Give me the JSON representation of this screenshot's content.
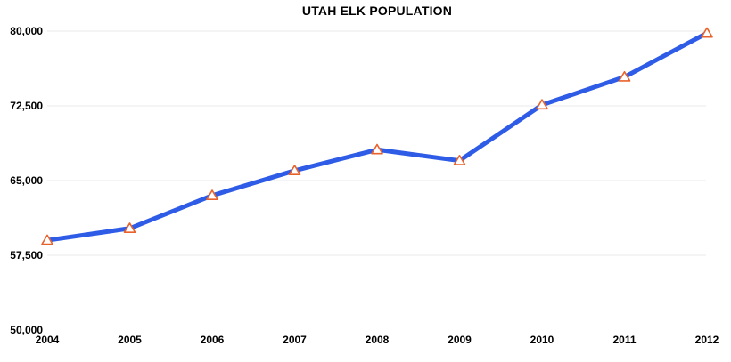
{
  "title": "UTAH ELK POPULATION",
  "colors": {
    "background": "#ffffff",
    "line": "#2e5ce6",
    "marker_stroke": "#e8622c",
    "marker_fill": "#ffffff",
    "grid": "#e8e8e8",
    "text": "#000000"
  },
  "chart_data": {
    "type": "line",
    "title": "UTAH ELK POPULATION",
    "series_name": "Utah elk population",
    "x": [
      2004,
      2005,
      2006,
      2007,
      2008,
      2009,
      2010,
      2011,
      2012
    ],
    "x_labels": [
      "2004",
      "2005",
      "2006",
      "2007",
      "2008",
      "2009",
      "2010",
      "2011",
      "2012"
    ],
    "values": [
      59000,
      60200,
      63500,
      66000,
      68100,
      67000,
      72600,
      75400,
      79800
    ],
    "ylim": [
      50000,
      80000
    ],
    "yticks": [
      50000,
      57500,
      65000,
      72500,
      80000
    ],
    "ytick_labels": [
      "50,000",
      "57,500",
      "65,000",
      "72,500",
      "80,000"
    ],
    "gridline_ticks": [
      57500,
      65000,
      72500,
      80000
    ],
    "xlabel": "",
    "ylabel": "",
    "legend": "none",
    "grid": "horizontal",
    "marker": "triangle-up"
  }
}
